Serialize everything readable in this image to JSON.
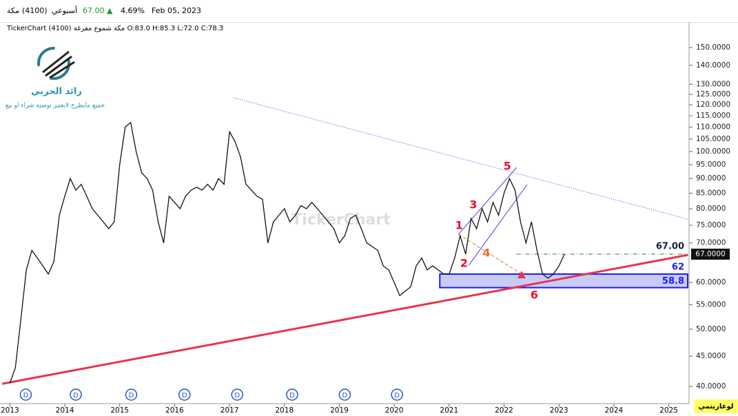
{
  "header": {
    "symbol": "مكة",
    "code": "(4100)",
    "period": "أسبوعي",
    "price": "67.00",
    "change": "4.69%",
    "date": "Feb 05, 2023",
    "info": "TickerChart مكة شموع مفرغة (4100) O:83.0 H:85.3 L:72.0 C:78.3"
  },
  "logo": {
    "author": "رائد الحربي",
    "disclaimer": "جميع مايطرح لايعتبر توصية شراء او بيع"
  },
  "chart_data": {
    "type": "line",
    "log_scale": true,
    "scale_label": "لوغاريتمي",
    "watermark": "TickerChart",
    "color": "#111111",
    "x": [
      2013.0,
      2013.1,
      2013.2,
      2013.3,
      2013.4,
      2013.5,
      2013.6,
      2013.7,
      2013.8,
      2013.9,
      2014.0,
      2014.1,
      2014.2,
      2014.3,
      2014.4,
      2014.5,
      2014.6,
      2014.7,
      2014.8,
      2014.9,
      2015.0,
      2015.1,
      2015.2,
      2015.3,
      2015.4,
      2015.5,
      2015.6,
      2015.7,
      2015.8,
      2015.9,
      2016.0,
      2016.1,
      2016.2,
      2016.3,
      2016.4,
      2016.5,
      2016.6,
      2016.7,
      2016.8,
      2016.9,
      2017.0,
      2017.1,
      2017.2,
      2017.3,
      2017.4,
      2017.5,
      2017.6,
      2017.7,
      2017.8,
      2017.9,
      2018.0,
      2018.1,
      2018.2,
      2018.3,
      2018.4,
      2018.5,
      2018.6,
      2018.7,
      2018.8,
      2018.9,
      2019.0,
      2019.1,
      2019.2,
      2019.3,
      2019.4,
      2019.5,
      2019.6,
      2019.7,
      2019.8,
      2019.9,
      2020.0,
      2020.1,
      2020.2,
      2020.3,
      2020.4,
      2020.5,
      2020.6,
      2020.7,
      2020.8,
      2020.9,
      2021.0,
      2021.1,
      2021.2,
      2021.3,
      2021.4,
      2021.5,
      2021.6,
      2021.7,
      2021.8,
      2021.9,
      2022.0,
      2022.1,
      2022.2,
      2022.3,
      2022.4,
      2022.5,
      2022.6,
      2022.7,
      2022.8,
      2022.9,
      2023.0,
      2023.1
    ],
    "values": [
      40.5,
      43,
      52,
      63,
      68,
      66,
      64,
      62,
      65,
      78,
      84,
      90,
      86,
      88,
      84,
      80,
      78,
      76,
      74,
      76,
      95,
      110,
      112,
      100,
      92,
      90,
      86,
      76,
      70,
      84,
      82,
      80,
      84,
      86,
      87,
      86,
      88,
      86,
      90,
      88,
      108,
      104,
      98,
      88,
      86,
      84,
      83,
      70,
      76,
      78,
      80,
      76,
      78,
      81,
      80,
      82,
      80,
      78,
      76,
      74,
      70,
      72,
      77,
      78,
      74,
      70,
      69,
      68,
      64,
      63,
      60,
      57,
      58,
      59,
      64,
      66,
      63,
      64,
      63,
      62,
      62,
      66,
      72,
      67,
      77,
      74,
      80,
      76,
      82,
      78,
      85,
      90,
      86,
      76,
      70,
      76,
      68,
      62,
      61,
      62,
      64,
      67
    ],
    "xlim": [
      2012.82,
      2025.37
    ],
    "xticks": [
      2013,
      2014,
      2015,
      2016,
      2017,
      2018,
      2019,
      2020,
      2021,
      2022,
      2023,
      2024,
      2025
    ],
    "ylim": [
      37.4,
      164.4
    ],
    "yticks": [
      {
        "value": 40,
        "label": "40.0000"
      },
      {
        "value": 45,
        "label": "45.0000"
      },
      {
        "value": 50,
        "label": "50.0000"
      },
      {
        "value": 55,
        "label": "55.0000"
      },
      {
        "value": 60,
        "label": "60.0000"
      },
      {
        "value": 70,
        "label": "70.0000"
      },
      {
        "value": 75,
        "label": "75.0000"
      },
      {
        "value": 80,
        "label": "80.0000"
      },
      {
        "value": 85,
        "label": "85.0000"
      },
      {
        "value": 90,
        "label": "90.0000"
      },
      {
        "value": 95,
        "label": "95.0000"
      },
      {
        "value": 100,
        "label": "100.0000"
      },
      {
        "value": 105,
        "label": "105.0000"
      },
      {
        "value": 110,
        "label": "110.0000"
      },
      {
        "value": 115,
        "label": "115.0000"
      },
      {
        "value": 120,
        "label": "120.0000"
      },
      {
        "value": 125,
        "label": "125.0000"
      },
      {
        "value": 130,
        "label": "130.0000"
      },
      {
        "value": 140,
        "label": "140.0000"
      },
      {
        "value": 150,
        "label": "150.0000"
      }
    ],
    "last_price": {
      "value": 67,
      "label": "67.0000"
    },
    "trendlines": [
      {
        "x": [
          2017.08,
          2025.35
        ],
        "values": [
          123.3,
          76.8
        ],
        "color": "#3b3bdd",
        "style": "dotted"
      },
      {
        "x": [
          2012.86,
          2025.35
        ],
        "values": [
          40.4,
          66.8
        ],
        "color": "#e8354a",
        "style": "solid"
      },
      {
        "x": [
          2021.17,
          2022.23
        ],
        "values": [
          72.4,
          94.0
        ],
        "color": "#3b3bdd",
        "style": "solid"
      },
      {
        "x": [
          2021.36,
          2022.42
        ],
        "values": [
          64.2,
          87.9
        ],
        "color": "#3b3bdd",
        "style": "solid"
      },
      {
        "x": [
          2021.17,
          2022.32
        ],
        "values": [
          72.4,
          62.0
        ],
        "color": "#e8702a",
        "style": "dashed"
      }
    ],
    "level": {
      "value": 67,
      "label": "67.00",
      "x_start": 2022.23,
      "color": "#2e7d32"
    },
    "zone": {
      "values": [
        58.8,
        62
      ],
      "labels": [
        "58.8",
        "62"
      ],
      "x_start": 2020.83,
      "color": "#1a1aff"
    },
    "target": {
      "x": 2022.32,
      "value": 61.8,
      "color": "#e8354a"
    },
    "wave_labels": [
      {
        "label": "1",
        "x": 2021.18,
        "value": 74.8
      },
      {
        "label": "2",
        "x": 2021.27,
        "value": 64.5
      },
      {
        "label": "3",
        "x": 2021.44,
        "value": 81.1
      },
      {
        "label": "4",
        "x": 2021.68,
        "value": 67.2
      },
      {
        "label": "5",
        "x": 2022.06,
        "value": 94.2
      },
      {
        "label": "6",
        "x": 2022.55,
        "value": 57.0
      }
    ],
    "dividend_label": "D",
    "dividends": [
      2013.29,
      2014.2,
      2015.21,
      2016.18,
      2017.14,
      2018.14,
      2019.1,
      2020.05
    ]
  }
}
